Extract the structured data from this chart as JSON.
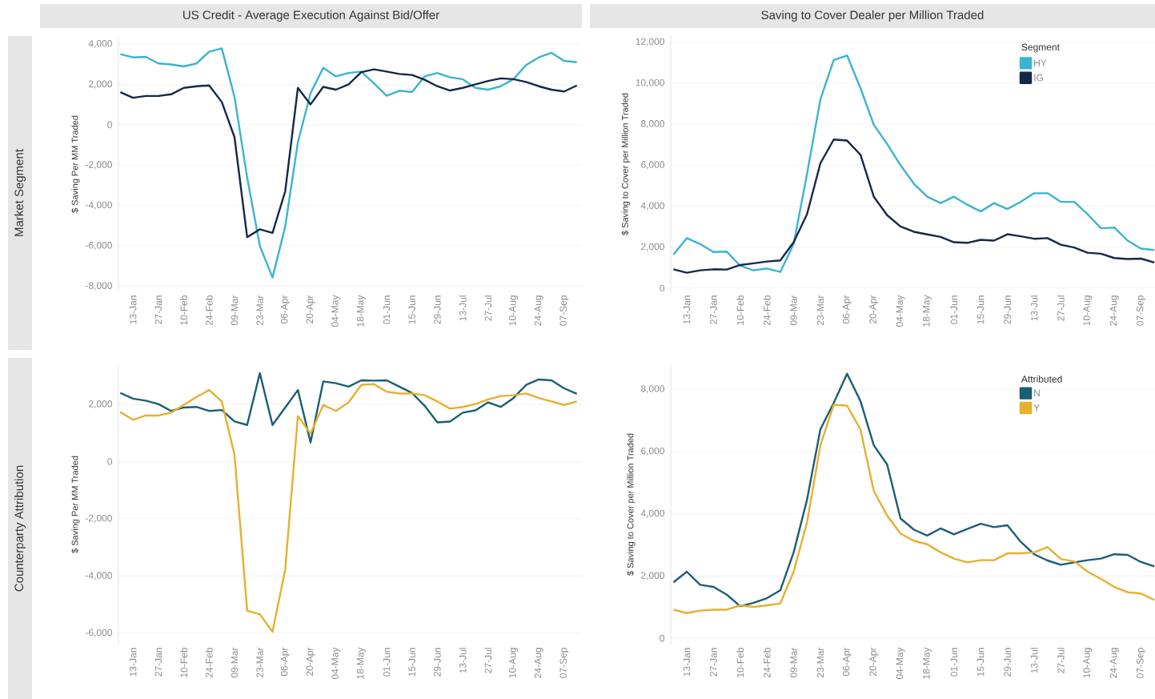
{
  "chart_data": [
    {
      "type": "line",
      "title": "US Credit - Average Execution Against Bid/Offer",
      "ylabel": "$ Saving Per MM Traded",
      "annotations": [
        "Market Segment"
      ],
      "categories": [
        null,
        "13-Jan",
        null,
        "27-Jan",
        null,
        "10-Feb",
        null,
        "24-Feb",
        null,
        "09-Mar",
        null,
        "23-Mar",
        null,
        "06-Apr",
        null,
        "20-Apr",
        null,
        "04-May",
        null,
        "18-May",
        null,
        "01-Jun",
        null,
        "15-Jun",
        null,
        "29-Jun",
        null,
        "13-Jul",
        null,
        "27-Jul",
        null,
        "10-Aug",
        null,
        "24-Aug",
        null,
        "07-Sep",
        null
      ],
      "series": [
        {
          "color": "#3bb4d0",
          "values": [
            3500,
            3340,
            3370,
            3040,
            2990,
            2890,
            3040,
            3620,
            3790,
            1390,
            -2610,
            -6000,
            -7570,
            -5040,
            -870,
            1570,
            2820,
            2400,
            2570,
            2640,
            2050,
            1440,
            1690,
            1620,
            2400,
            2570,
            2350,
            2260,
            1830,
            1740,
            1910,
            2260,
            2960,
            3340,
            3570,
            3170,
            3100
          ]
        },
        {
          "color": "#14294a",
          "values": [
            1620,
            1340,
            1430,
            1430,
            1510,
            1830,
            1910,
            1950,
            1130,
            -610,
            -5570,
            -5180,
            -5360,
            -3300,
            1830,
            1010,
            1880,
            1740,
            2000,
            2610,
            2750,
            2640,
            2520,
            2470,
            2230,
            1910,
            1700,
            1830,
            2000,
            2170,
            2300,
            2260,
            2120,
            1910,
            1740,
            1650,
            1950
          ]
        }
      ],
      "ylim": [
        -8300,
        4400
      ],
      "yticks": [
        {
          "value": 4000,
          "label": "4,000"
        },
        {
          "value": 2000,
          "label": "2,000"
        },
        0,
        {
          "value": -2000,
          "label": "-2,000"
        },
        {
          "value": -4000,
          "label": "-4,000"
        },
        {
          "value": -6000,
          "label": "-6,000"
        },
        {
          "value": -8000,
          "label": "-8,000"
        }
      ],
      "grid": "y"
    },
    {
      "type": "line",
      "title": "Saving to Cover Dealer per Million Traded",
      "ylabel": "$ Saving to Cover per Million Traded",
      "legend_title": "Segment",
      "legend": "top right",
      "categories": [
        null,
        "13-Jan",
        null,
        "27-Jan",
        null,
        "10-Feb",
        null,
        "24-Feb",
        null,
        "09-Mar",
        null,
        "23-Mar",
        null,
        "06-Apr",
        null,
        "20-Apr",
        null,
        "04-May",
        null,
        "18-May",
        null,
        "01-Jun",
        null,
        "15-Jun",
        null,
        "29-Jun",
        null,
        "13-Jul",
        null,
        "27-Jul",
        null,
        "10-Aug",
        null,
        "24-Aug",
        null,
        "07-Sep",
        null
      ],
      "series": [
        {
          "name": "HY",
          "color": "#3bb4d0",
          "values": [
            1640,
            2440,
            2150,
            1760,
            1780,
            1090,
            870,
            960,
            790,
            2150,
            5570,
            9200,
            11130,
            11350,
            9760,
            7970,
            7030,
            6000,
            5090,
            4460,
            4150,
            4460,
            4070,
            3740,
            4150,
            3860,
            4210,
            4630,
            4630,
            4210,
            4210,
            3610,
            2920,
            2960,
            2320,
            1930,
            1860
          ]
        },
        {
          "name": "IG",
          "color": "#14294a",
          "values": [
            920,
            750,
            870,
            920,
            910,
            1130,
            1210,
            1300,
            1350,
            2240,
            3610,
            6090,
            7250,
            7200,
            6510,
            4460,
            3560,
            3010,
            2750,
            2620,
            2500,
            2240,
            2210,
            2360,
            2320,
            2630,
            2530,
            2410,
            2440,
            2120,
            1980,
            1730,
            1680,
            1470,
            1420,
            1440,
            1250
          ]
        }
      ],
      "ylim": [
        -200,
        12300
      ],
      "yticks": [
        0,
        {
          "value": 2000,
          "label": "2,000"
        },
        {
          "value": 4000,
          "label": "4,000"
        },
        {
          "value": 6000,
          "label": "6,000"
        },
        {
          "value": 8000,
          "label": "8,000"
        },
        {
          "value": 10000,
          "label": "10,000"
        },
        {
          "value": 12000,
          "label": "12,000"
        }
      ],
      "grid": "y"
    },
    {
      "type": "line",
      "ylabel": "$ Saving Per MM Traded",
      "annotations": [
        "Counterparty Attribution"
      ],
      "categories": [
        null,
        "13-Jan",
        null,
        "27-Jan",
        null,
        "10-Feb",
        null,
        "24-Feb",
        null,
        "09-Mar",
        null,
        "23-Mar",
        null,
        "06-Apr",
        null,
        "20-Apr",
        null,
        "04-May",
        null,
        "18-May",
        null,
        "01-Jun",
        null,
        "15-Jun",
        null,
        "29-Jun",
        null,
        "13-Jul",
        null,
        "27-Jul",
        null,
        "10-Aug",
        null,
        "24-Aug",
        null,
        "07-Sep",
        null
      ],
      "series": [
        {
          "color": "#1b5e75",
          "values": [
            2400,
            2200,
            2130,
            2010,
            1770,
            1890,
            1910,
            1770,
            1800,
            1400,
            1280,
            3090,
            1280,
            1890,
            2500,
            670,
            2800,
            2740,
            2620,
            2840,
            2830,
            2840,
            2620,
            2400,
            1950,
            1370,
            1400,
            1710,
            1790,
            2070,
            1910,
            2220,
            2680,
            2870,
            2840,
            2560,
            2370
          ]
        },
        {
          "color": "#e6b02e",
          "values": [
            1730,
            1460,
            1610,
            1610,
            1710,
            1980,
            2260,
            2500,
            2100,
            240,
            -5220,
            -5340,
            -5950,
            -3780,
            1590,
            980,
            1980,
            1770,
            2070,
            2680,
            2710,
            2440,
            2380,
            2380,
            2320,
            2100,
            1850,
            1910,
            2010,
            2170,
            2290,
            2320,
            2380,
            2220,
            2100,
            1980,
            2100
          ]
        }
      ],
      "ylim": [
        -6400,
        3400
      ],
      "yticks": [
        {
          "value": 2000,
          "label": "2,000"
        },
        0,
        {
          "value": -2000,
          "label": "-2,000"
        },
        {
          "value": -4000,
          "label": "-4,000"
        },
        {
          "value": -6000,
          "label": "-6,000"
        }
      ],
      "grid": "y"
    },
    {
      "type": "line",
      "ylabel": "$ Saving to Cover per Million Traded",
      "legend_title": "Attributed",
      "legend": "top right",
      "categories": [
        null,
        "13-Jan",
        null,
        "27-Jan",
        null,
        "10-Feb",
        null,
        "24-Feb",
        null,
        "09-Mar",
        null,
        "23-Mar",
        null,
        "06-Apr",
        null,
        "20-Apr",
        null,
        "04-May",
        null,
        "18-May",
        null,
        "01-Jun",
        null,
        "15-Jun",
        null,
        "29-Jun",
        null,
        "13-Jul",
        null,
        "27-Jul",
        null,
        "10-Aug",
        null,
        "24-Aug",
        null,
        "07-Sep",
        null
      ],
      "series": [
        {
          "name": "N",
          "color": "#1b5e75",
          "values": [
            1800,
            2140,
            1720,
            1650,
            1400,
            1030,
            1140,
            1290,
            1540,
            2760,
            4450,
            6710,
            7560,
            8500,
            7620,
            6200,
            5580,
            3850,
            3490,
            3300,
            3530,
            3340,
            3510,
            3680,
            3570,
            3630,
            3100,
            2700,
            2500,
            2360,
            2440,
            2510,
            2560,
            2700,
            2680,
            2450,
            2310
          ]
        },
        {
          "name": "Y",
          "color": "#e6b02e",
          "values": [
            920,
            810,
            890,
            920,
            920,
            1060,
            1010,
            1060,
            1120,
            2140,
            3720,
            6200,
            7500,
            7470,
            6710,
            4730,
            3940,
            3360,
            3130,
            3020,
            2760,
            2560,
            2440,
            2510,
            2510,
            2730,
            2730,
            2760,
            2930,
            2550,
            2470,
            2140,
            1910,
            1650,
            1480,
            1440,
            1230
          ]
        }
      ],
      "ylim": [
        -200,
        8800
      ],
      "yticks": [
        0,
        {
          "value": 2000,
          "label": "2,000"
        },
        {
          "value": 4000,
          "label": "4,000"
        },
        {
          "value": 6000,
          "label": "6,000"
        },
        {
          "value": 8000,
          "label": "8,000"
        }
      ],
      "grid": "y"
    }
  ]
}
